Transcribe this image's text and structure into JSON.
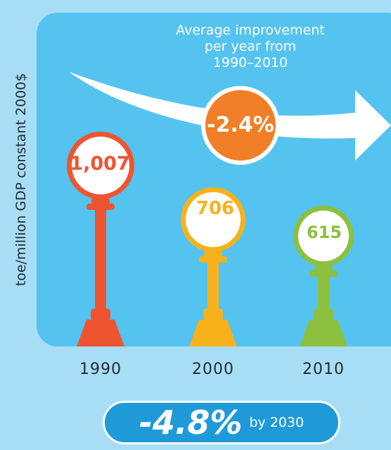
{
  "chart_data": {
    "type": "bar",
    "title": "Average improvement\nper year from\n1990–2010",
    "ylabel": "toe/million GDP constant 2000$",
    "xlabel": "",
    "categories": [
      "1990",
      "2000",
      "2010"
    ],
    "values": [
      1007,
      706,
      615
    ],
    "value_labels": [
      "1,007",
      "706",
      "615"
    ],
    "annotations": {
      "average_change": "-2.4%",
      "target_value": "-4.8%",
      "target_label": "by 2030"
    }
  },
  "colors": {
    "panel": "#54c3f0",
    "background": "#a8ddf6",
    "bars": [
      "#ef5430",
      "#f7b21b",
      "#8cc03e"
    ],
    "avg_circle": "#f07f27",
    "pill": "#1f9ad8"
  }
}
